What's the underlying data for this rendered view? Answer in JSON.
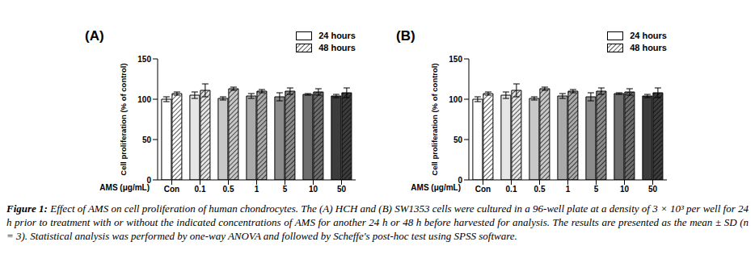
{
  "chart_data": [
    {
      "type": "bar",
      "title": "(A)",
      "x_label": "AMS (μg/mL)",
      "y_label": "Cell proliferation (% of control)",
      "categories": [
        "Con",
        "0.1",
        "0.5",
        "1",
        "5",
        "10",
        "50"
      ],
      "series": [
        {
          "name": "24 hours",
          "colors": [
            "#ffffff",
            "#e6e6e6",
            "#c8c8c8",
            "#aaaaaa",
            "#8c8c8c",
            "#6e6e6e",
            "#3c3c3c"
          ],
          "values": [
            100,
            105,
            101,
            104,
            103,
            106,
            104
          ],
          "errors": [
            3,
            4,
            2,
            3,
            5,
            1,
            2
          ]
        },
        {
          "name": "48 hours",
          "colors": [
            "#ffffff",
            "#e6e6e6",
            "#c8c8c8",
            "#aaaaaa",
            "#8c8c8c",
            "#6e6e6e",
            "#3c3c3c"
          ],
          "values": [
            107,
            111,
            113,
            110,
            110,
            109,
            108
          ],
          "errors": [
            2,
            8,
            2,
            2,
            4,
            4,
            6
          ]
        }
      ],
      "ylim": [
        0,
        150
      ],
      "yticks": [
        0,
        50,
        100,
        150
      ],
      "legend": "upper right"
    },
    {
      "type": "bar",
      "title": "(B)",
      "x_label": "AMS (μg/mL)",
      "y_label": "Cell proliferation (% of control)",
      "categories": [
        "Con",
        "0.1",
        "0.5",
        "1",
        "5",
        "10",
        "50"
      ],
      "series": [
        {
          "name": "24 hours",
          "colors": [
            "#ffffff",
            "#e6e6e6",
            "#c8c8c8",
            "#aaaaaa",
            "#8c8c8c",
            "#6e6e6e",
            "#3c3c3c"
          ],
          "values": [
            100,
            105,
            101,
            104,
            103,
            107,
            104
          ],
          "errors": [
            3,
            4,
            2,
            3,
            5,
            1,
            2
          ]
        },
        {
          "name": "48 hours",
          "colors": [
            "#ffffff",
            "#e6e6e6",
            "#c8c8c8",
            "#aaaaaa",
            "#8c8c8c",
            "#6e6e6e",
            "#3c3c3c"
          ],
          "values": [
            107,
            111,
            113,
            110,
            110,
            109,
            108
          ],
          "errors": [
            2,
            8,
            2,
            2,
            4,
            4,
            6
          ]
        }
      ],
      "ylim": [
        0,
        150
      ],
      "yticks": [
        0,
        50,
        100,
        150
      ],
      "legend": "upper right"
    }
  ],
  "caption": {
    "label": "Figure 1:",
    "text": "Effect of AMS on cell proliferation of human chondrocytes. The (A) HCH and (B) SW1353 cells were cultured in a 96-well plate at a density of 3 × 10³ per well for 24 h prior to treatment with or without the indicated concentrations of AMS for another 24 h or 48 h before harvested for analysis. The results are presented as the mean ± SD (n = 3). Statistical analysis was performed by one-way ANOVA and followed by Scheffe's post-hoc test using SPSS software."
  }
}
